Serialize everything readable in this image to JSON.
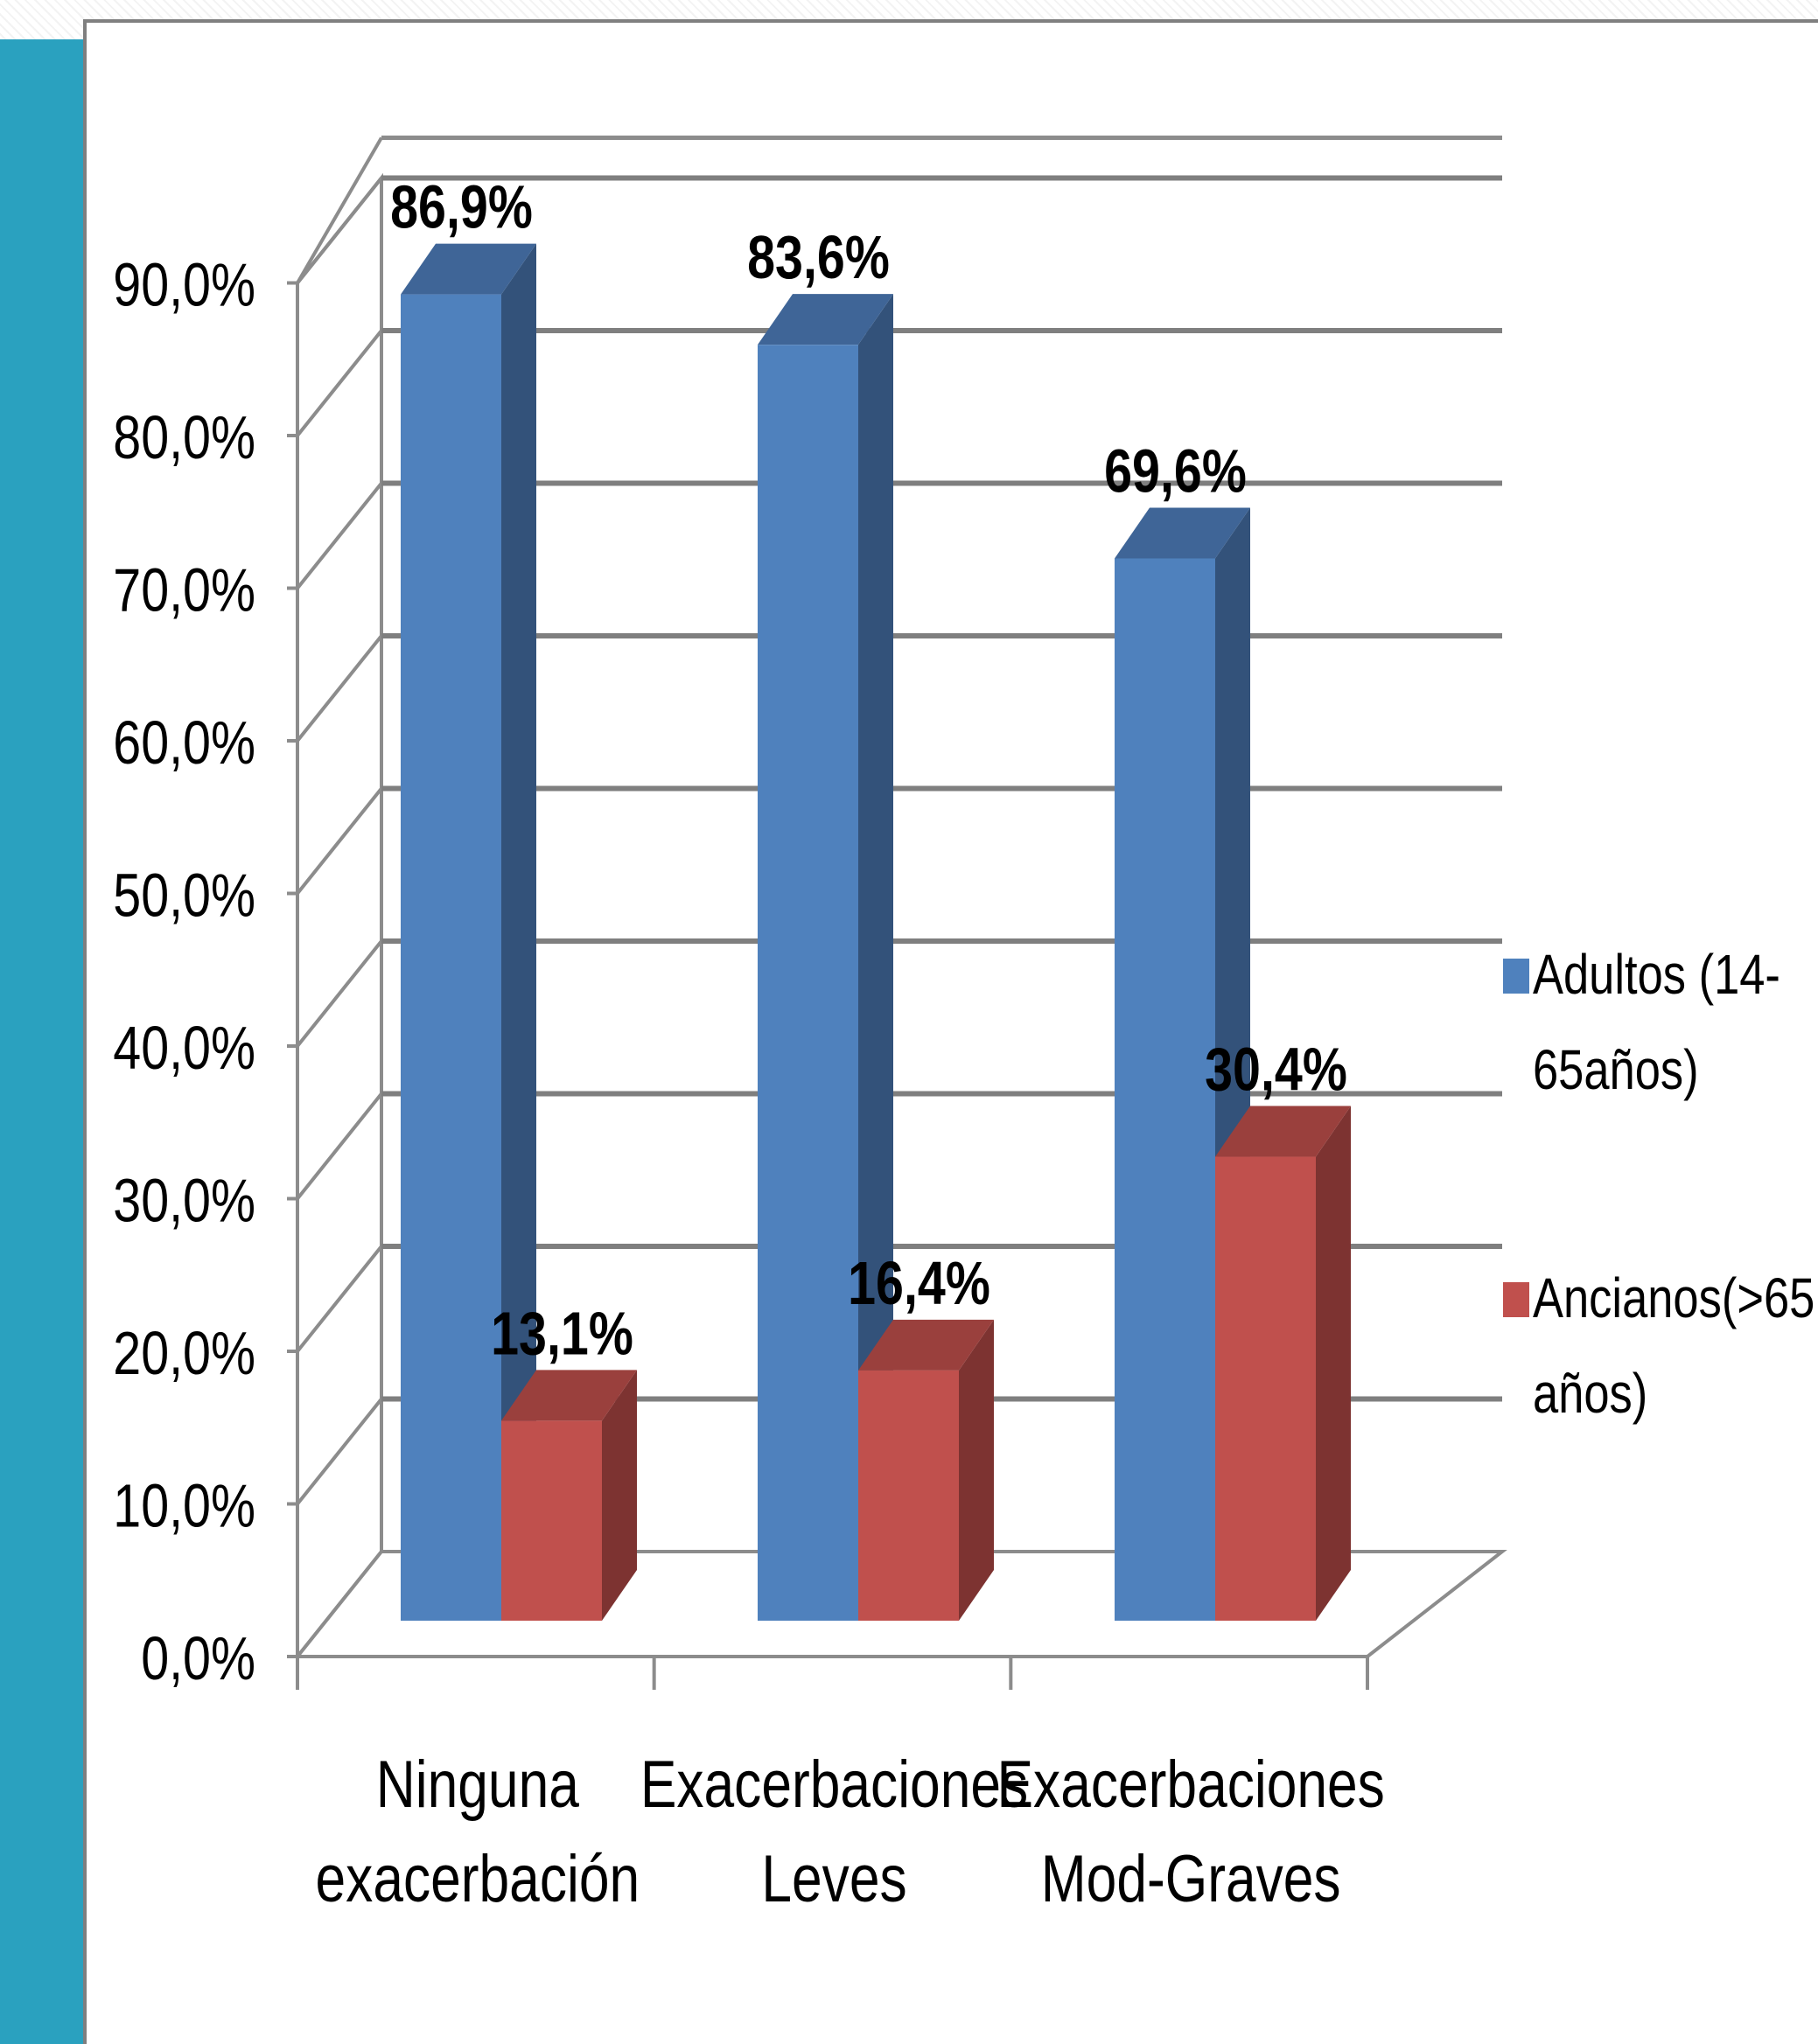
{
  "chart_data": {
    "type": "bar",
    "title": "",
    "xlabel": "",
    "ylabel": "",
    "ylim": [
      0,
      90
    ],
    "y_ticks": [
      {
        "value": 0,
        "label": "0,0%"
      },
      {
        "value": 10,
        "label": "10,0%"
      },
      {
        "value": 20,
        "label": "20,0%"
      },
      {
        "value": 30,
        "label": "30,0%"
      },
      {
        "value": 40,
        "label": "40,0%"
      },
      {
        "value": 50,
        "label": "50,0%"
      },
      {
        "value": 60,
        "label": "60,0%"
      },
      {
        "value": 70,
        "label": "70,0%"
      },
      {
        "value": 80,
        "label": "80,0%"
      },
      {
        "value": 90,
        "label": "90,0%"
      }
    ],
    "categories": [
      [
        "Ninguna",
        "exacerbación"
      ],
      [
        "Exacerbaciones",
        "Leves"
      ],
      [
        "Exacerbaciones",
        "Mod-Graves"
      ]
    ],
    "series": [
      {
        "name": [
          "Adultos (14-",
          "65años)"
        ],
        "values": [
          86.9,
          83.6,
          69.6
        ],
        "labels": [
          "86,9%",
          "83,6%",
          "69,6%"
        ],
        "color": "#4f81bd",
        "side_color": "#33527a",
        "top_color": "#3f6597"
      },
      {
        "name": [
          "Ancianos(>65",
          "años)"
        ],
        "values": [
          13.1,
          16.4,
          30.4
        ],
        "labels": [
          "13,1%",
          "16,4%",
          "30,4%"
        ],
        "color": "#c0504d",
        "side_color": "#7d3331",
        "top_color": "#9a403d"
      }
    ],
    "chart_style": "3d-clustered-column",
    "grid": true,
    "legend_position": "right"
  }
}
